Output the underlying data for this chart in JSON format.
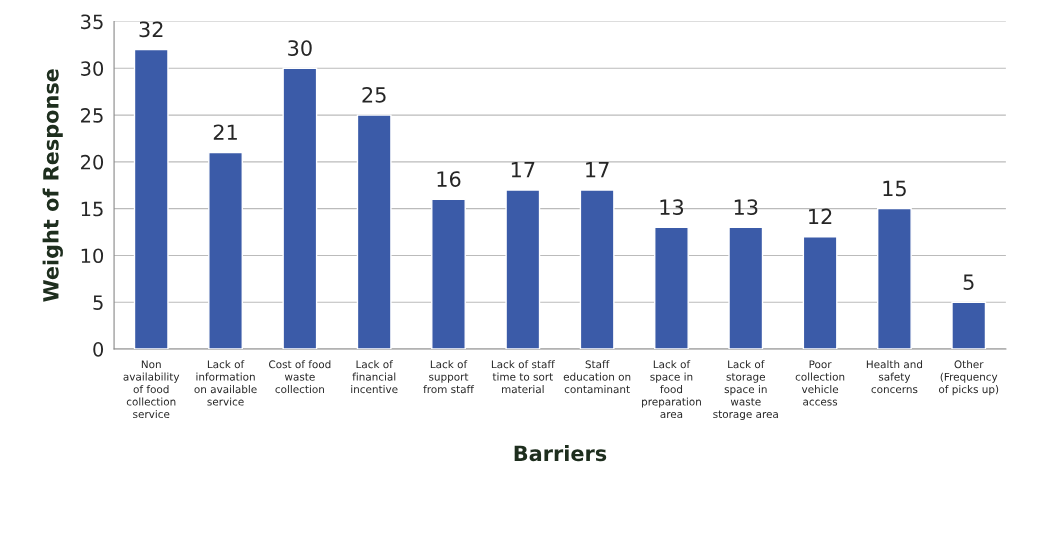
{
  "chart_data": {
    "type": "bar",
    "xlabel": "Barriers",
    "ylabel": "Weight of Response",
    "categories": [
      "Non\navailability\nof food\ncollection\nservice",
      "Lack of\ninformation\non available\nservice",
      "Cost of food\nwaste\ncollection",
      "Lack of\nfinancial\nincentive",
      "Lack of\nsupport\nfrom staff",
      "Lack of staff\ntime to sort\nmaterial",
      "Staff\neducation on\ncontaminant",
      "Lack of\nspace in\nfood\npreparation\narea",
      "Lack of\nstorage\nspace in\nwaste\nstorage area",
      "Poor\ncollection\nvehicle\naccess",
      "Health and\nsafety\nconcerns",
      "Other\n(Frequency\nof picks up)"
    ],
    "values": [
      32,
      21,
      30,
      25,
      16,
      17,
      17,
      13,
      13,
      12,
      15,
      5
    ],
    "color": "#3b5ba8",
    "ylim": [
      0,
      35
    ],
    "yticks": [
      0,
      5,
      10,
      15,
      20,
      25,
      30,
      35
    ],
    "grid": "y",
    "data_labels": true
  }
}
